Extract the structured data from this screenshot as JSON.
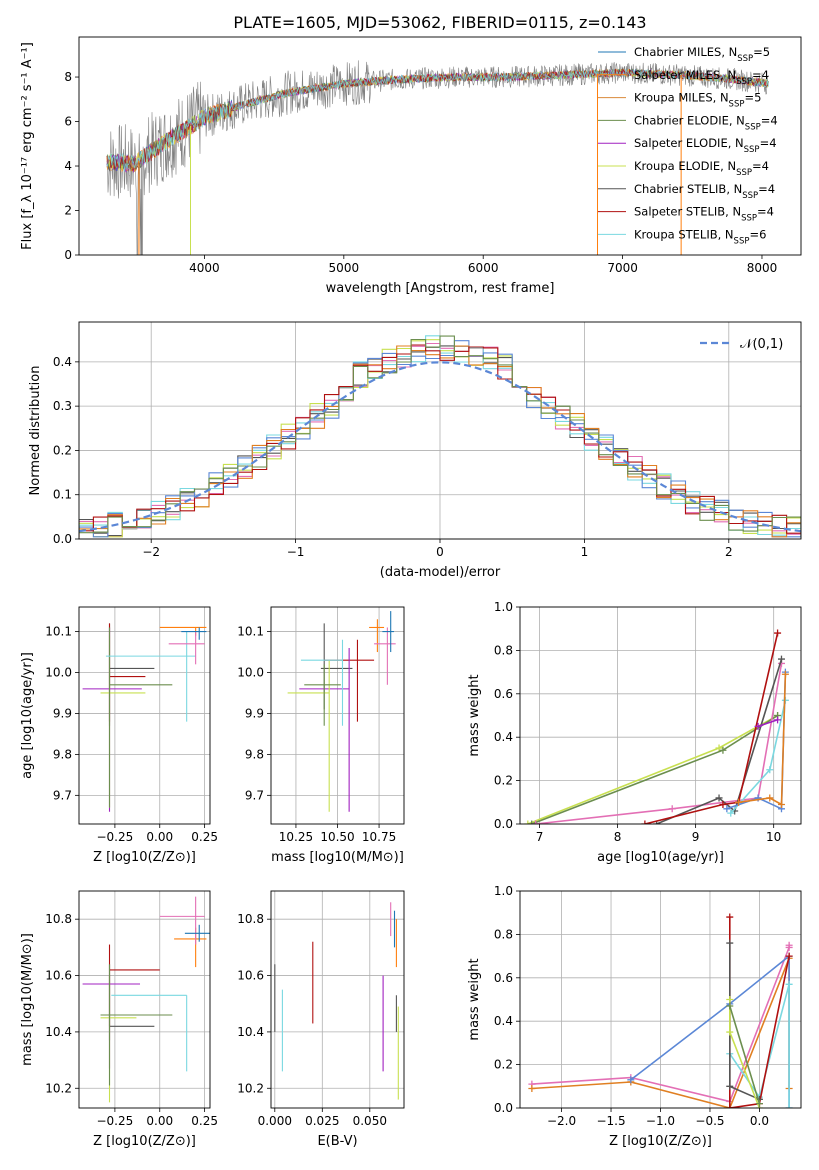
{
  "figure": {
    "title": "PLATE=1605, MJD=53062, FIBERID=0115, z=0.143"
  },
  "colors": {
    "chabrier_miles": "#1f77b4",
    "salpeter_miles": "#ff7f0e",
    "kroupa_miles": "#d98a3a",
    "chabrier_elodie": "#6b8e4e",
    "salpeter_elodie": "#a020c0",
    "kroupa_elodie": "#c8e050",
    "chabrier_stelib": "#555555",
    "salpeter_stelib": "#b01010",
    "kroupa_stelib": "#7ad8e0",
    "pink": "#e36fb5",
    "blue": "#5b87d6",
    "orange": "#e07f22",
    "data_gray": "#808080"
  },
  "chart_data": [
    {
      "id": "spectrum",
      "type": "line",
      "title": "PLATE=1605, MJD=53062, FIBERID=0115, z=0.143",
      "xlabel": "wavelength [Angstrom, rest frame]",
      "ylabel": "Flux [f_λ 10⁻¹⁷ erg cm⁻² s⁻¹ A⁻¹]",
      "xlim": [
        3100,
        8280
      ],
      "ylim": [
        0,
        9.8
      ],
      "xticks": [
        4000,
        5000,
        6000,
        7000,
        8000
      ],
      "yticks": [
        0,
        2,
        4,
        6,
        8
      ],
      "legend": [
        "Chabrier MILES, N_SSP=5",
        "Salpeter MILES, N_SSP=4",
        "Kroupa MILES, N_SSP=5",
        "Chabrier ELODIE, N_SSP=4",
        "Salpeter ELODIE, N_SSP=4",
        "Kroupa ELODIE, N_SSP=4",
        "Chabrier STELIB, N_SSP=4",
        "Salpeter STELIB, N_SSP=4",
        "Kroupa STELIB, N_SSP=6"
      ],
      "legend_colors": [
        "#1f77b4",
        "#ff7f0e",
        "#d98a3a",
        "#6b8e4e",
        "#a020c0",
        "#c8e050",
        "#555555",
        "#b01010",
        "#7ad8e0"
      ],
      "continuum_wavelength": [
        3300,
        3500,
        3700,
        3900,
        4000,
        4300,
        4600,
        5000,
        5400,
        5800,
        6200,
        6600,
        7000,
        7400,
        7800,
        8050
      ],
      "continuum_flux": [
        4.2,
        4.1,
        5.0,
        5.8,
        6.2,
        6.8,
        7.3,
        7.7,
        7.9,
        8.0,
        8.0,
        8.1,
        8.2,
        8.1,
        7.9,
        7.7
      ],
      "drops_wavelength": [
        3530,
        3550,
        3900,
        6820,
        7420
      ]
    },
    {
      "id": "residual_hist",
      "type": "histogram",
      "xlabel": "(data-model)/error",
      "ylabel": "Normed distribution",
      "xlim": [
        -2.5,
        2.5
      ],
      "ylim": [
        0,
        0.49
      ],
      "xticks": [
        -2,
        -1,
        0,
        1,
        2
      ],
      "yticks": [
        0.0,
        0.1,
        0.2,
        0.3,
        0.4
      ],
      "legend": [
        "𝒩(0,1)"
      ],
      "bin_width": 0.1,
      "normal_mean": 0,
      "normal_sigma": 1
    },
    {
      "id": "age_vs_Z",
      "type": "errorbar",
      "xlabel": "Z [log10(Z/Z⊙)]",
      "ylabel": "age  [log10(age/yr)]",
      "xlim": [
        -0.45,
        0.28
      ],
      "ylim": [
        9.63,
        10.16
      ],
      "xticks": [
        -0.25,
        0.0,
        0.25
      ],
      "yticks": [
        9.7,
        9.8,
        9.9,
        10.0,
        10.1
      ],
      "points": [
        {
          "c": "chabrier_stelib",
          "x": -0.28,
          "y": 10.01,
          "xe": [
            0.0,
            0.25
          ],
          "ye": [
            0.14,
            0.11
          ]
        },
        {
          "c": "salpeter_stelib",
          "x": -0.28,
          "y": 9.99,
          "xe": [
            0.0,
            0.2
          ],
          "ye": [
            0.11,
            0.13
          ]
        },
        {
          "c": "salpeter_elodie",
          "x": -0.28,
          "y": 9.96,
          "xe": [
            0.15,
            0.18
          ],
          "ye": [
            0.3,
            0.15
          ]
        },
        {
          "c": "kroupa_elodie",
          "x": -0.28,
          "y": 9.95,
          "xe": [
            0.05,
            0.2
          ],
          "ye": [
            0.28,
            0.14
          ]
        },
        {
          "c": "chabrier_elodie",
          "x": -0.28,
          "y": 9.97,
          "xe": [
            0.0,
            0.35
          ],
          "ye": [
            0.3,
            0.14
          ]
        },
        {
          "c": "kroupa_stelib",
          "x": 0.15,
          "y": 10.04,
          "xe": [
            0.45,
            0.05
          ],
          "ye": [
            0.16,
            0.06
          ]
        },
        {
          "c": "salpeter_miles",
          "x": 0.2,
          "y": 10.11,
          "xe": [
            0.2,
            0.06
          ],
          "ye": [
            0.02,
            0.0
          ]
        },
        {
          "c": "pink",
          "x": 0.2,
          "y": 10.07,
          "xe": [
            0.15,
            0.05
          ],
          "ye": [
            0.05,
            0.03
          ]
        },
        {
          "c": "chabrier_miles",
          "x": 0.22,
          "y": 10.1,
          "xe": [
            0.1,
            0.04
          ],
          "ye": [
            0.02,
            0.01
          ]
        }
      ]
    },
    {
      "id": "age_vs_mass",
      "type": "errorbar",
      "xlabel": "mass [log10(M/M⊙)]",
      "ylabel": "",
      "xlim": [
        10.1,
        10.9
      ],
      "ylim": [
        9.63,
        10.16
      ],
      "xticks": [
        10.25,
        10.5,
        10.75
      ],
      "yticks": [
        9.7,
        9.8,
        9.9,
        10.0,
        10.1
      ],
      "points": [
        {
          "c": "chabrier_stelib",
          "x": 10.42,
          "y": 10.01,
          "xe": [
            0.02,
            0.17
          ],
          "ye": [
            0.1,
            0.11
          ]
        },
        {
          "c": "salpeter_stelib",
          "x": 10.62,
          "y": 10.03,
          "xe": [
            0.2,
            0.1
          ],
          "ye": [
            0.15,
            0.05
          ]
        },
        {
          "c": "salpeter_elodie",
          "x": 10.57,
          "y": 9.96,
          "xe": [
            0.3,
            0.0
          ],
          "ye": [
            0.3,
            0.1
          ]
        },
        {
          "c": "kroupa_elodie",
          "x": 10.45,
          "y": 9.95,
          "xe": [
            0.25,
            0.0
          ],
          "ye": [
            0.29,
            0.08
          ]
        },
        {
          "c": "chabrier_elodie",
          "x": 10.42,
          "y": 9.97,
          "xe": [
            0.12,
            0.1
          ],
          "ye": [
            0.1,
            0.05
          ]
        },
        {
          "c": "kroupa_stelib",
          "x": 10.53,
          "y": 10.03,
          "xe": [
            0.25,
            0.0
          ],
          "ye": [
            0.16,
            0.05
          ]
        },
        {
          "c": "salpeter_miles",
          "x": 10.74,
          "y": 10.11,
          "xe": [
            0.05,
            0.04
          ],
          "ye": [
            0.06,
            0.02
          ]
        },
        {
          "c": "pink",
          "x": 10.8,
          "y": 10.07,
          "xe": [
            0.08,
            0.05
          ],
          "ye": [
            0.1,
            0.04
          ]
        },
        {
          "c": "chabrier_miles",
          "x": 10.82,
          "y": 10.1,
          "xe": [
            0.05,
            0.02
          ],
          "ye": [
            0.05,
            0.05
          ]
        }
      ]
    },
    {
      "id": "mass_weight_vs_age",
      "type": "line",
      "xlabel": "age  [log10(age/yr)]",
      "ylabel": "mass weight",
      "xlim": [
        6.75,
        10.35
      ],
      "ylim": [
        0,
        1
      ],
      "xticks": [
        7,
        8,
        9,
        10
      ],
      "yticks": [
        0.0,
        0.2,
        0.4,
        0.6,
        0.8,
        1.0
      ],
      "series": [
        {
          "c": "kroupa_elodie",
          "x": [
            6.85,
            9.3,
            10.05
          ],
          "y": [
            0.0,
            0.35,
            0.5
          ]
        },
        {
          "c": "chabrier_elodie",
          "x": [
            6.9,
            9.35,
            10.05
          ],
          "y": [
            0.0,
            0.34,
            0.5
          ]
        },
        {
          "c": "pink",
          "x": [
            6.95,
            8.7,
            9.8,
            10.1
          ],
          "y": [
            0.0,
            0.07,
            0.12,
            0.74
          ]
        },
        {
          "c": "chabrier_stelib",
          "x": [
            8.5,
            9.3,
            9.5,
            10.1
          ],
          "y": [
            0.0,
            0.12,
            0.06,
            0.76
          ]
        },
        {
          "c": "salpeter_stelib",
          "x": [
            8.35,
            9.35,
            9.55,
            10.05
          ],
          "y": [
            0.0,
            0.09,
            0.1,
            0.88
          ]
        },
        {
          "c": "kroupa_stelib",
          "x": [
            9.45,
            9.95,
            10.15
          ],
          "y": [
            0.05,
            0.25,
            0.57
          ]
        },
        {
          "c": "blue",
          "x": [
            9.4,
            9.8,
            10.1,
            10.15
          ],
          "y": [
            0.07,
            0.12,
            0.07,
            0.7
          ]
        },
        {
          "c": "orange",
          "x": [
            9.55,
            9.95,
            10.1,
            10.15
          ],
          "y": [
            0.1,
            0.12,
            0.09,
            0.69
          ]
        },
        {
          "c": "salpeter_elodie",
          "x": [
            9.8,
            10.05
          ],
          "y": [
            0.45,
            0.48
          ]
        }
      ]
    },
    {
      "id": "mass_vs_Z",
      "type": "errorbar",
      "xlabel": "Z [log10(Z/Z⊙)]",
      "ylabel": "mass [log10(M/M⊙)]",
      "xlim": [
        -0.45,
        0.28
      ],
      "ylim": [
        10.13,
        10.9
      ],
      "xticks": [
        -0.25,
        0.0,
        0.25
      ],
      "yticks": [
        10.2,
        10.4,
        10.6,
        10.8
      ],
      "points": [
        {
          "c": "chabrier_stelib",
          "x": -0.28,
          "y": 10.42,
          "xe": [
            0.0,
            0.25
          ],
          "ye": [
            0.05,
            0.22
          ]
        },
        {
          "c": "salpeter_stelib",
          "x": -0.28,
          "y": 10.62,
          "xe": [
            0.0,
            0.28
          ],
          "ye": [
            0.2,
            0.09
          ]
        },
        {
          "c": "salpeter_elodie",
          "x": -0.28,
          "y": 10.57,
          "xe": [
            0.15,
            0.17
          ],
          "ye": [
            0.3,
            0.03
          ]
        },
        {
          "c": "kroupa_elodie",
          "x": -0.28,
          "y": 10.45,
          "xe": [
            0.05,
            0.15
          ],
          "ye": [
            0.3,
            0.15
          ]
        },
        {
          "c": "chabrier_elodie",
          "x": -0.28,
          "y": 10.46,
          "xe": [
            0.05,
            0.35
          ],
          "ye": [
            0.25,
            0.18
          ]
        },
        {
          "c": "kroupa_stelib",
          "x": 0.15,
          "y": 10.53,
          "xe": [
            0.42,
            0.0
          ],
          "ye": [
            0.27,
            0.0
          ]
        },
        {
          "c": "salpeter_miles",
          "x": 0.2,
          "y": 10.73,
          "xe": [
            0.12,
            0.06
          ],
          "ye": [
            0.1,
            0.04
          ]
        },
        {
          "c": "pink",
          "x": 0.2,
          "y": 10.81,
          "xe": [
            0.2,
            0.05
          ],
          "ye": [
            0.1,
            0.07
          ]
        },
        {
          "c": "chabrier_miles",
          "x": 0.22,
          "y": 10.75,
          "xe": [
            0.08,
            0.06
          ],
          "ye": [
            0.03,
            0.03
          ]
        }
      ]
    },
    {
      "id": "mass_vs_ebv",
      "type": "errorbar",
      "xlabel": "E(B-V)",
      "ylabel": "",
      "xlim": [
        -0.002,
        0.068
      ],
      "ylim": [
        10.13,
        10.9
      ],
      "xticks": [
        0.0,
        0.025,
        0.05
      ],
      "yticks": [
        10.2,
        10.4,
        10.6,
        10.8
      ],
      "points": [
        {
          "c": "chabrier_stelib",
          "x": 0.0,
          "y": 10.5,
          "xe": [
            0,
            0
          ],
          "ye": [
            0.1,
            0.14
          ]
        },
        {
          "c": "kroupa_stelib",
          "x": 0.004,
          "y": 10.45,
          "xe": [
            0,
            0
          ],
          "ye": [
            0.19,
            0.1
          ]
        },
        {
          "c": "salpeter_stelib",
          "x": 0.02,
          "y": 10.57,
          "xe": [
            0,
            0
          ],
          "ye": [
            0.14,
            0.15
          ]
        },
        {
          "c": "salpeter_elodie",
          "x": 0.057,
          "y": 10.45,
          "xe": [
            0,
            0
          ],
          "ye": [
            0.19,
            0.15
          ]
        },
        {
          "c": "pink",
          "x": 0.061,
          "y": 10.8,
          "xe": [
            0,
            0
          ],
          "ye": [
            0.06,
            0.06
          ]
        },
        {
          "c": "chabrier_miles",
          "x": 0.063,
          "y": 10.75,
          "xe": [
            0,
            0
          ],
          "ye": [
            0.05,
            0.08
          ]
        },
        {
          "c": "salpeter_miles",
          "x": 0.064,
          "y": 10.7,
          "xe": [
            0,
            0
          ],
          "ye": [
            0.07,
            0.1
          ]
        },
        {
          "c": "chabrier_stelib",
          "x": 0.064,
          "y": 10.47,
          "xe": [
            0,
            0
          ],
          "ye": [
            0.07,
            0.06
          ]
        },
        {
          "c": "kroupa_elodie",
          "x": 0.065,
          "y": 10.37,
          "xe": [
            0,
            0
          ],
          "ye": [
            0.21,
            0.12
          ]
        }
      ]
    },
    {
      "id": "mass_weight_vs_Z",
      "type": "line",
      "xlabel": "Z [log10(Z/Z⊙)]",
      "ylabel": "mass weight",
      "xlim": [
        -2.42,
        0.42
      ],
      "ylim": [
        0,
        1
      ],
      "xticks": [
        -2.0,
        -1.5,
        -1.0,
        -0.5,
        0.0
      ],
      "yticks": [
        0.0,
        0.2,
        0.4,
        0.6,
        0.8,
        1.0
      ],
      "series": [
        {
          "c": "pink",
          "x": [
            -2.3,
            -1.3,
            -0.3,
            0.3,
            0.3
          ],
          "y": [
            0.11,
            0.14,
            0.03,
            0.74,
            0.75
          ]
        },
        {
          "c": "orange",
          "x": [
            -2.3,
            -1.3,
            -0.3,
            0.3,
            0.3
          ],
          "y": [
            0.09,
            0.12,
            0.0,
            0.69,
            0.09
          ]
        },
        {
          "c": "blue",
          "x": [
            -1.3,
            -0.3,
            0.3,
            0.3
          ],
          "y": [
            0.13,
            0.48,
            0.7,
            0.0
          ]
        },
        {
          "c": "kroupa_stelib",
          "x": [
            -0.3,
            0.0,
            0.3,
            0.3
          ],
          "y": [
            0.25,
            0.05,
            0.57,
            0.0
          ]
        },
        {
          "c": "salpeter_stelib",
          "x": [
            -0.3,
            -0.3,
            0.0,
            0.3
          ],
          "y": [
            0.88,
            0.0,
            0.02,
            0.7
          ]
        },
        {
          "c": "chabrier_stelib",
          "x": [
            -0.3,
            -0.3,
            0.0
          ],
          "y": [
            0.76,
            0.1,
            0.04
          ]
        },
        {
          "c": "kroupa_elodie",
          "x": [
            -0.3,
            -0.3,
            0.0
          ],
          "y": [
            0.5,
            0.35,
            0.0
          ]
        },
        {
          "c": "chabrier_elodie",
          "x": [
            -0.3,
            0.0
          ],
          "y": [
            0.47,
            0.02
          ]
        }
      ]
    }
  ]
}
